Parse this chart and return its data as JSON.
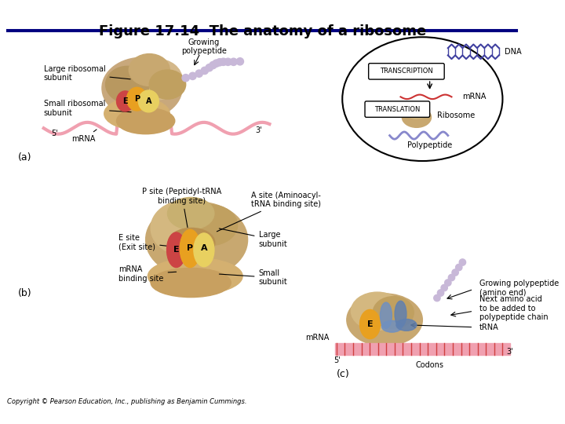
{
  "title": "Figure 17.14  The anatomy of a ribosome",
  "title_fontsize": 13,
  "bg_color": "#ffffff",
  "copyright": "Copyright © Pearson Education, Inc., publishing as Benjamin Cummings.",
  "panel_a_label": "(a)",
  "panel_b_label": "(b)",
  "panel_c_label": "(c)",
  "labels_a": {
    "large_ribosomal": "Large ribosomal\nsubunit",
    "small_ribosomal": "Small ribosomal\nsubunit",
    "growing_polypeptide": "Growing\npolypeptide",
    "mrna": "mRNA",
    "five_prime": "5'",
    "three_prime": "3'",
    "e": "E",
    "p": "P",
    "a": "A"
  },
  "labels_b": {
    "p_site": "P site (Peptidyl-tRNA\nbinding site)",
    "a_site": "A site (Aminoacyl-\ntRNA binding site)",
    "e_site": "E site\n(Exit site)",
    "mrna_binding": "mRNA\nbinding site",
    "large_subunit": "Large\nsubunit",
    "small_subunit": "Small\nsubunit",
    "e": "E",
    "p": "P",
    "a": "A"
  },
  "labels_c": {
    "growing_poly": "Growing polypeptide\n(amino end)",
    "next_amino": "Next amino acid\nto be added to\npolypeptide chain",
    "trna": "tRNA",
    "mrna": "mRNA",
    "five_prime": "5'",
    "three_prime": "3'",
    "codons": "Codons",
    "e": "E"
  },
  "right_panel": {
    "dna": "DNA",
    "transcription": "TRANSCRIPTION",
    "translation": "TRANSLATION",
    "mrna": "mRNA",
    "ribosome": "Ribosome",
    "polypeptide": "Polypeptide"
  },
  "colors": {
    "large_subunit": "#c8a87c",
    "small_subunit": "#c8a87c",
    "mrna_color": "#f0a0b0",
    "polypeptide_beads": "#c8b8d8",
    "e_site": "#cc4444",
    "p_site": "#e8a020",
    "a_site": "#e8d060",
    "trna_color": "#6090c0",
    "codon_color": "#d04040",
    "line_color": "#000000",
    "text_color": "#000000",
    "box_color": "#f0f0f0",
    "dna_color": "#4040a0",
    "right_bg": "#ffffff"
  }
}
